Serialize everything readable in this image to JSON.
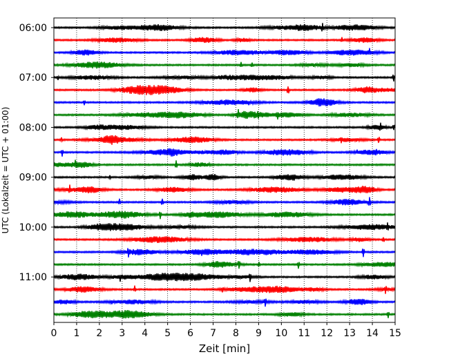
{
  "chart_data": {
    "type": "line",
    "title": "",
    "xlabel": "Zeit  [min]",
    "ylabel": "UTC (Lokalzeit = UTC + 01:00)",
    "xlim": [
      0,
      15
    ],
    "x_ticks": [
      "0",
      "1",
      "2",
      "3",
      "4",
      "5",
      "6",
      "7",
      "8",
      "9",
      "10",
      "11",
      "12",
      "13",
      "14",
      "15"
    ],
    "y_tick_labels": [
      "06:00",
      "07:00",
      "08:00",
      "09:00",
      "10:00",
      "11:00"
    ],
    "trace_start_times": [
      "06:00",
      "06:15",
      "06:30",
      "06:45",
      "07:00",
      "07:15",
      "07:30",
      "07:45",
      "08:00",
      "08:15",
      "08:30",
      "08:45",
      "09:00",
      "09:15",
      "09:30",
      "09:45",
      "10:00",
      "10:15",
      "10:30",
      "10:45",
      "11:00",
      "11:15",
      "11:30",
      "11:45"
    ],
    "color_cycle": [
      "#000000",
      "#ff0000",
      "#0000ff",
      "#008000"
    ],
    "vertical_grid": true,
    "grid_style": "dotted"
  }
}
